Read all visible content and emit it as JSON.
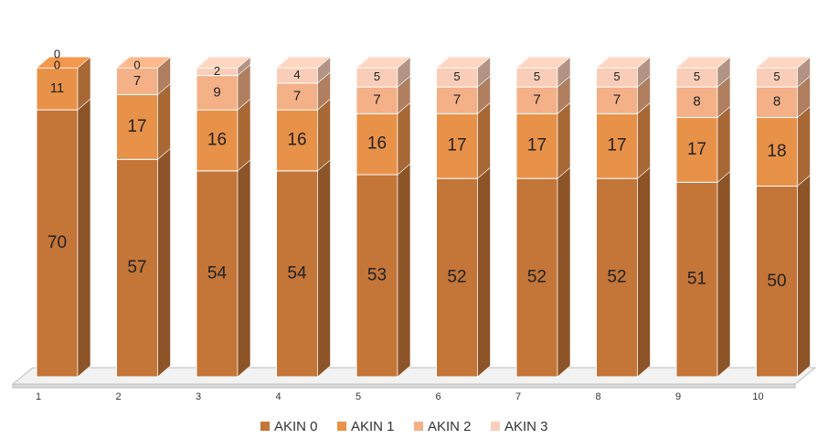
{
  "chart_data": {
    "type": "bar",
    "stacked": true,
    "style": "3d-columns",
    "categories": [
      "1",
      "2",
      "3",
      "4",
      "5",
      "6",
      "7",
      "8",
      "9",
      "10"
    ],
    "series": [
      {
        "name": "AKIN 0",
        "color": "#C47538",
        "values": [
          70,
          57,
          54,
          54,
          53,
          52,
          52,
          52,
          51,
          50
        ]
      },
      {
        "name": "AKIN 1",
        "color": "#E89149",
        "values": [
          11,
          17,
          16,
          16,
          16,
          17,
          17,
          17,
          17,
          18
        ]
      },
      {
        "name": "AKIN 2",
        "color": "#F4B086",
        "values": [
          0,
          7,
          9,
          7,
          7,
          7,
          7,
          7,
          8,
          8
        ]
      },
      {
        "name": "AKIN 3",
        "color": "#F9CDB8",
        "values": [
          0,
          0,
          2,
          4,
          5,
          5,
          5,
          5,
          5,
          5
        ]
      }
    ],
    "title": "",
    "xlabel": "",
    "ylabel": "",
    "legend_position": "bottom",
    "grid": false,
    "axis_visible": false
  }
}
